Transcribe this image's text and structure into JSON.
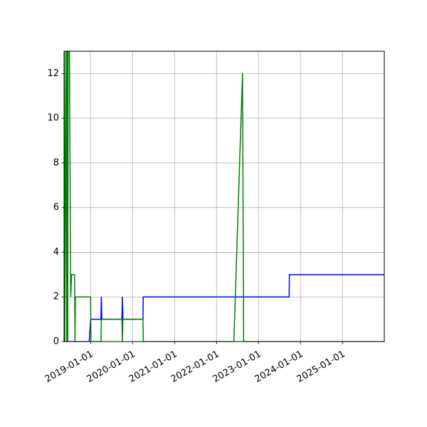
{
  "chart_data": {
    "type": "line",
    "title": "",
    "xlabel": "",
    "ylabel": "",
    "x_axis_type": "date",
    "xlim": [
      "2018-05-15",
      "2025-12-31"
    ],
    "ylim": [
      0,
      13
    ],
    "grid": true,
    "legend": "none",
    "x_ticks": [
      "2019-01-01",
      "2020-01-01",
      "2021-01-01",
      "2022-01-01",
      "2023-01-01",
      "2024-01-01",
      "2025-01-01"
    ],
    "y_ticks": [
      0,
      2,
      4,
      6,
      8,
      10,
      12
    ],
    "series": [
      {
        "color": "#0000ff",
        "points": [
          [
            "2018-05-15",
            0
          ],
          [
            "2018-12-20",
            0
          ],
          [
            "2019-01-01",
            1
          ],
          [
            "2019-04-01",
            1
          ],
          [
            "2019-04-05",
            2
          ],
          [
            "2019-04-09",
            1
          ],
          [
            "2019-10-01",
            1
          ],
          [
            "2019-10-05",
            2
          ],
          [
            "2019-10-09",
            1
          ],
          [
            "2020-04-01",
            1
          ],
          [
            "2020-04-03",
            2
          ],
          [
            "2023-09-25",
            2
          ],
          [
            "2023-09-27",
            3
          ],
          [
            "2025-12-31",
            3
          ]
        ]
      },
      {
        "color": "#008000",
        "points": [
          [
            "2018-05-15",
            0
          ],
          [
            "2018-05-18",
            13
          ],
          [
            "2018-05-22",
            0
          ],
          [
            "2018-06-01",
            13
          ],
          [
            "2018-06-08",
            0
          ],
          [
            "2018-06-12",
            13
          ],
          [
            "2018-06-16",
            0
          ],
          [
            "2018-06-20",
            13
          ],
          [
            "2018-07-01",
            13
          ],
          [
            "2018-07-12",
            2
          ],
          [
            "2018-07-20",
            3
          ],
          [
            "2018-08-15",
            3
          ],
          [
            "2018-08-18",
            0
          ],
          [
            "2018-08-22",
            2
          ],
          [
            "2019-01-01",
            2
          ],
          [
            "2019-01-04",
            0
          ],
          [
            "2019-04-01",
            0
          ],
          [
            "2019-04-05",
            1
          ],
          [
            "2019-10-01",
            1
          ],
          [
            "2019-10-05",
            0
          ],
          [
            "2019-10-09",
            1
          ],
          [
            "2020-04-01",
            1
          ],
          [
            "2020-04-04",
            0
          ],
          [
            "2022-06-01",
            0
          ],
          [
            "2022-08-15",
            12
          ],
          [
            "2022-08-25",
            0
          ],
          [
            "2025-12-31",
            0
          ]
        ]
      }
    ]
  }
}
